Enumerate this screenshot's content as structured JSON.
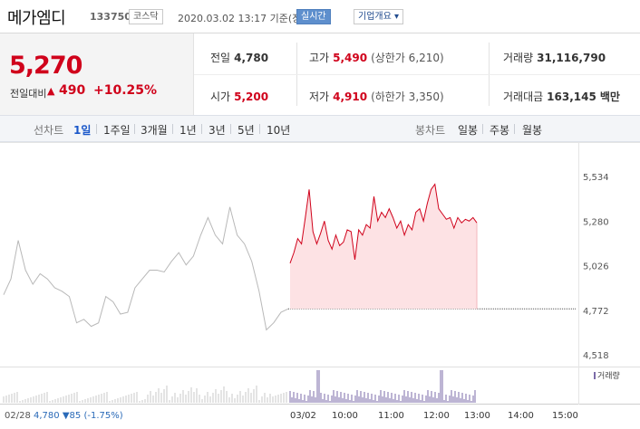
{
  "header": {
    "stock_name": "메가엠디",
    "stock_code": "133750",
    "market_badge": "코스닥",
    "datetime": "2020.03.02 13:17 기준(장중)",
    "live_badge": "실시간",
    "info_dropdown": "기업개요 ▾"
  },
  "quote": {
    "price": "5,270",
    "change_label": "전일대비",
    "change_arrow": "▲",
    "change_value": "490",
    "change_pct": "+10.25%",
    "prev_close_label": "전일",
    "prev_close": "4,780",
    "open_label": "시가",
    "open": "5,200",
    "high_label": "고가",
    "high": "5,490",
    "upper_limit": "(상한가 6,210)",
    "low_label": "저가",
    "low": "4,910",
    "lower_limit": "(하한가 3,350)",
    "volume_label": "거래량",
    "volume": "31,116,790",
    "amount_label": "거래대금",
    "amount": "163,145",
    "amount_unit": "백만"
  },
  "tabs": {
    "line_label": "선차트",
    "line_tabs": [
      "1일",
      "1주일",
      "3개월",
      "1년",
      "3년",
      "5년",
      "10년"
    ],
    "line_active": 0,
    "candle_label": "봉차트",
    "candle_tabs": [
      "일봉",
      "주봉",
      "월봉"
    ]
  },
  "chart_data": {
    "type": "line",
    "y_ticks": [
      "5,534",
      "5,280",
      "5,026",
      "4,772",
      "4,518"
    ],
    "ylim": [
      4518,
      5534
    ],
    "prev_close": 4780,
    "prev_day": {
      "label": "02/28",
      "values": [
        4860,
        4950,
        5170,
        5000,
        4920,
        4980,
        4950,
        4900,
        4880,
        4850,
        4700,
        4720,
        4680,
        4700,
        4850,
        4820,
        4750,
        4760,
        4900,
        4950,
        5000,
        5000,
        4990,
        5050,
        5100,
        5030,
        5080,
        5200,
        5300,
        5200,
        5150,
        5360,
        5200,
        5150,
        5050,
        4880,
        4660,
        4700,
        4760,
        4780
      ]
    },
    "current_day": {
      "label": "03/02",
      "values": [
        5040,
        5100,
        5180,
        5150,
        5300,
        5460,
        5220,
        5150,
        5210,
        5280,
        5170,
        5120,
        5200,
        5140,
        5160,
        5230,
        5220,
        5060,
        5230,
        5200,
        5260,
        5240,
        5420,
        5280,
        5330,
        5300,
        5350,
        5300,
        5240,
        5280,
        5200,
        5260,
        5230,
        5330,
        5350,
        5280,
        5380,
        5460,
        5490,
        5350,
        5320,
        5290,
        5300,
        5240,
        5300,
        5270,
        5290,
        5280,
        5300,
        5270
      ]
    },
    "volume_legend": "거래량",
    "time_labels": [
      "03/02",
      "10:00",
      "11:00",
      "12:00",
      "13:00",
      "14:00",
      "15:00"
    ],
    "footer_date": "02/28",
    "footer_close": "4,780",
    "footer_change": "▼85",
    "footer_pct": "(-1.75%)"
  }
}
